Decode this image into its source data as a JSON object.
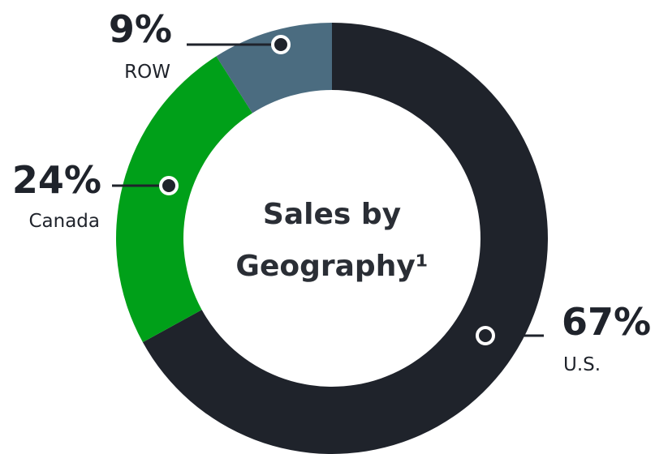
{
  "chart_data": {
    "type": "donut",
    "title_lines": [
      "Sales by",
      "Geography¹"
    ],
    "categories": [
      "U.S.",
      "Canada",
      "ROW"
    ],
    "values": [
      67,
      24,
      9
    ],
    "value_labels": [
      "67%",
      "24%",
      "9%"
    ],
    "colors": [
      "#1f232b",
      "#00a019",
      "#4b6c80"
    ]
  }
}
